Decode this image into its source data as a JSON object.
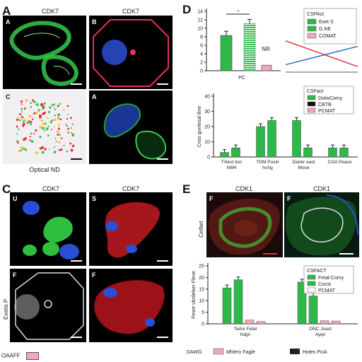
{
  "panels": {
    "A": {
      "letter": "A",
      "titles": [
        "CDK7",
        "CDK7"
      ],
      "subs": [
        "A",
        "B",
        "C",
        "A"
      ],
      "caption": "Optical ND"
    },
    "C": {
      "letter": "C",
      "titles": [
        "CDK7",
        "CDK7"
      ],
      "subs": [
        "U",
        "S",
        "F",
        "F"
      ],
      "side_label": "Exetis P"
    },
    "D": {
      "letter": "D"
    },
    "E": {
      "letter": "E",
      "titles": [
        "CDK1",
        "CDK1"
      ],
      "subs": [
        "F",
        "F"
      ],
      "side_label": "Cetbet"
    }
  },
  "colors": {
    "green": "#2fb84a",
    "pink": "#f2a7b5",
    "red": "#e0303a",
    "blue": "#2b62c9",
    "black": "#111111"
  },
  "chart_data": [
    {
      "id": "D-top",
      "type": "bar",
      "categories": [
        "PC"
      ],
      "series": [
        {
          "name": "Exet S",
          "values": [
            8.3
          ]
        },
        {
          "name": "G.NE",
          "values": [
            11.1
          ]
        },
        {
          "name": "COMAT",
          "values": [
            1.3
          ]
        }
      ],
      "xlabel": "PC",
      "ylim": [
        0,
        14
      ],
      "yticks": [
        0,
        2,
        4,
        6,
        8,
        10,
        12,
        14
      ],
      "annotations": [
        "*",
        "NR"
      ],
      "legend_title": "CSPAct",
      "legend_position": "top-right",
      "inset": {
        "type": "line",
        "series": [
          {
            "name": "red",
            "x": [
              0,
              1
            ],
            "y": [
              0.85,
              0.15
            ]
          },
          {
            "name": "blue",
            "x": [
              0,
              1
            ],
            "y": [
              0.2,
              0.7
            ]
          }
        ]
      }
    },
    {
      "id": "D-bottom",
      "type": "bar",
      "categories": [
        "Tritest lion NM4",
        "TDM Pusin huhg",
        "Darler east Mose",
        "COA Peace"
      ],
      "series": [
        {
          "name": "DotwComy",
          "values": [
            3,
            20,
            24,
            6
          ]
        },
        {
          "name": "CBTB",
          "values": [
            6,
            24,
            6,
            6
          ]
        }
      ],
      "ylabel": "Coss gunlesal iline",
      "ylim": [
        0,
        40
      ],
      "yticks": [
        0,
        10,
        20,
        30,
        40
      ],
      "legend_title": "CSFact",
      "legend_entries": [
        "DotwComy",
        "CBTB",
        "PCMAT"
      ],
      "legend_position": "top-right"
    },
    {
      "id": "E-bottom",
      "type": "bar",
      "categories": [
        "Tarlor Fetal hdgn",
        "ONC Joast Ayqn"
      ],
      "series": [
        {
          "name": "Fetal-Comy",
          "values": [
            15.5,
            18
          ]
        },
        {
          "name": "Cocst",
          "values": [
            19,
            12
          ]
        },
        {
          "name": "PCMAT",
          "values": [
            1.6,
            1.3
          ]
        },
        {
          "name": "PC",
          "values": [
            1.0,
            1.2
          ]
        }
      ],
      "ylabel": "Fesre vbrdelser Fleve",
      "ylim": [
        0,
        25
      ],
      "yticks": [
        0,
        5,
        10,
        15,
        20,
        25
      ],
      "legend_title": "CSFACT",
      "legend_entries": [
        "Fetal-Comy",
        "Cocst",
        "PCMAT"
      ],
      "legend_position": "top-right",
      "lower_legend": [
        "DAWG",
        "Mhlero Fagle",
        "Hotes PciA"
      ]
    }
  ],
  "bottom_strip": {
    "label": "OAAFF"
  }
}
